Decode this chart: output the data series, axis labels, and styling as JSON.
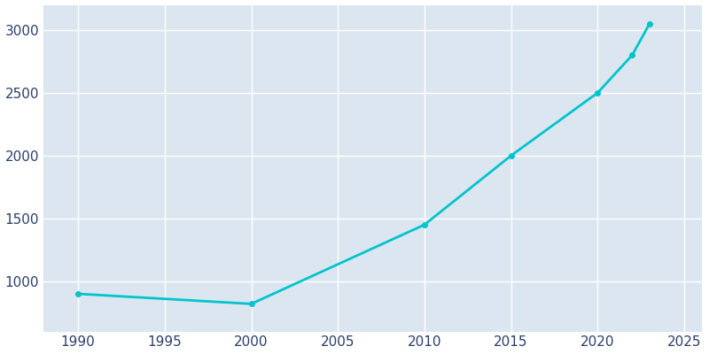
{
  "years": [
    1990,
    2000,
    2010,
    2015,
    2020,
    2022,
    2023
  ],
  "population": [
    900,
    820,
    1450,
    2000,
    2500,
    2800,
    3050
  ],
  "line_color": "#00C5CD",
  "plot_bg_color": "#DCE6F0",
  "fig_bg_color": "#FFFFFF",
  "grid_color": "#FFFFFF",
  "tick_label_color": "#2C3E6B",
  "xlim": [
    1988,
    2026
  ],
  "ylim": [
    600,
    3200
  ],
  "xticks": [
    1990,
    1995,
    2000,
    2005,
    2010,
    2015,
    2020,
    2025
  ],
  "yticks": [
    1000,
    1500,
    2000,
    2500,
    3000
  ],
  "line_width": 2.0,
  "marker": "o",
  "marker_size": 4
}
